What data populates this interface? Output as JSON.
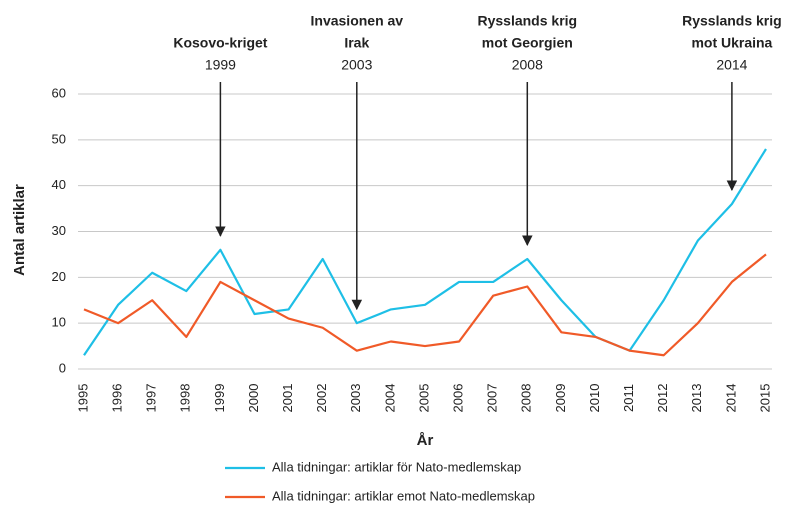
{
  "chart_data": {
    "type": "line",
    "ylabel": "Antal artiklar",
    "xlabel": "År",
    "categories": [
      "1995",
      "1996",
      "1997",
      "1998",
      "1999",
      "2000",
      "2001",
      "2002",
      "2003",
      "2004",
      "2005",
      "2006",
      "2007",
      "2008",
      "2009",
      "2010",
      "2011",
      "2012",
      "2013",
      "2014",
      "2015"
    ],
    "series": [
      {
        "name": "Alla tidningar: artiklar för Nato-medlemskap",
        "color": "#1ebfe6",
        "values": [
          3,
          14,
          21,
          17,
          26,
          12,
          13,
          24,
          10,
          13,
          14,
          19,
          19,
          24,
          15,
          7,
          4,
          15,
          28,
          36,
          48
        ]
      },
      {
        "name": "Alla tidningar: artiklar emot Nato-medlemskap",
        "color": "#f05a28",
        "values": [
          13,
          10,
          15,
          7,
          19,
          15,
          11,
          9,
          4,
          6,
          5,
          6,
          16,
          18,
          8,
          7,
          4,
          3,
          10,
          19,
          25
        ]
      }
    ],
    "ylim": [
      0,
      60
    ],
    "yticks": [
      0,
      10,
      20,
      30,
      40,
      50,
      60
    ],
    "grid": true,
    "annotations": [
      {
        "lines": [
          "Kosovo-kriget"
        ],
        "year": "1999"
      },
      {
        "lines": [
          "Invasionen av",
          "Irak"
        ],
        "year": "2003"
      },
      {
        "lines": [
          "Rysslands krig",
          "mot Georgien"
        ],
        "year": "2008"
      },
      {
        "lines": [
          "Rysslands krig",
          "mot Ukraina"
        ],
        "year": "2014"
      }
    ],
    "legend": "bottom"
  }
}
